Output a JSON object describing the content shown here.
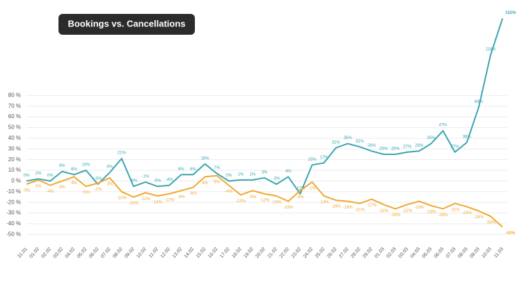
{
  "chart_data": {
    "type": "line",
    "title": "Bookings vs. Cancellations",
    "categories": [
      "31.01",
      "01.02",
      "02.02",
      "03.02",
      "04.02",
      "05.02",
      "06.02",
      "07.02",
      "08.02",
      "09.02",
      "10.02",
      "11.02",
      "12.02",
      "13.02",
      "14.02",
      "15.02",
      "16.02",
      "17.02",
      "18.02",
      "19.02",
      "20.02",
      "21.02",
      "22.02",
      "23.02",
      "24.02",
      "25.02",
      "26.02",
      "27.02",
      "28.02",
      "29.02",
      "01.03",
      "02.03",
      "03.03",
      "04.03",
      "05.03",
      "06.03",
      "07.03",
      "08.03",
      "09.03",
      "10.03",
      "11.03"
    ],
    "series": [
      {
        "color": "#3aa6b0",
        "values": [
          0,
          2,
          0,
          9,
          6,
          10,
          -3,
          8,
          21,
          -5,
          -1,
          -5,
          -4,
          6,
          6,
          16,
          7,
          0,
          1,
          1,
          3,
          -3,
          4,
          -12,
          15,
          17,
          31,
          35,
          32,
          28,
          25,
          25,
          27,
          28,
          35,
          47,
          27,
          36,
          69,
          118,
          152
        ],
        "value_labels": [
          "0%",
          "2%",
          "0%",
          "9%",
          "6%",
          "10%",
          "-3%",
          "8%",
          "21%",
          "-5%",
          "-1%",
          "-5%",
          "-4%",
          "6%",
          "6%",
          "16%",
          "7%",
          "0%",
          "1%",
          "1%",
          "3%",
          "-3%",
          "4%",
          "-12%",
          "15%",
          "17%",
          "31%",
          "35%",
          "32%",
          "28%",
          "25%",
          "25%",
          "27%",
          "28%",
          "35%",
          "47%",
          "27%",
          "36%",
          "69%",
          "118%",
          "152%"
        ]
      },
      {
        "color": "#f0a830",
        "values": [
          -3,
          1,
          -4,
          0,
          4,
          -5,
          -2,
          3,
          -10,
          -15,
          -11,
          -14,
          -12,
          -9,
          -6,
          4,
          5,
          -4,
          -13,
          -9,
          -12,
          -14,
          -19,
          -9,
          -1,
          -14,
          -18,
          -19,
          -21,
          -17,
          -22,
          -26,
          -22,
          -19,
          -23,
          -26,
          -21,
          -24,
          -28,
          -33,
          -43
        ],
        "value_labels": [
          "-3%",
          "1%",
          "-4%",
          "0%",
          "4%",
          "-5%",
          "-2%",
          "3%",
          "-10%",
          "-15%",
          "-11%",
          "-14%",
          "-12%",
          "-9%",
          "-6%",
          "4%",
          "5%",
          "-4%",
          "-13%",
          "-9%",
          "-12%",
          "-14%",
          "-19%",
          "-9%",
          "-1%",
          "-14%",
          "-18%",
          "-19%",
          "-21%",
          "-17%",
          "-22%",
          "-26%",
          "-22%",
          "-19%",
          "-23%",
          "-26%",
          "-21%",
          "-24%",
          "-28%",
          "-33%",
          "-43%"
        ]
      }
    ],
    "ylim": [
      -55,
      155
    ],
    "yticks": [
      {
        "value": -50,
        "label": "-50 %"
      },
      {
        "value": -40,
        "label": "-40 %"
      },
      {
        "value": -30,
        "label": "-30 %"
      },
      {
        "value": -20,
        "label": "-20 %"
      },
      {
        "value": -10,
        "label": "-10 %"
      },
      {
        "value": 0,
        "label": "0 %"
      },
      {
        "value": 10,
        "label": "10 %"
      },
      {
        "value": 20,
        "label": "20 %"
      },
      {
        "value": 30,
        "label": "30 %"
      },
      {
        "value": 40,
        "label": "40 %"
      },
      {
        "value": 50,
        "label": "50 %"
      },
      {
        "value": 60,
        "label": "60 %"
      },
      {
        "value": 70,
        "label": "70 %"
      },
      {
        "value": 80,
        "label": "80 %"
      }
    ],
    "grid": true
  }
}
